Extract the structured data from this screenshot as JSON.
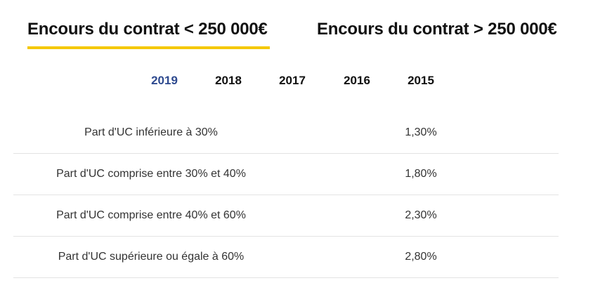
{
  "contract_tabs": [
    {
      "label": "Encours du contrat < 250 000€",
      "active": true
    },
    {
      "label": "Encours du contrat > 250 000€",
      "active": false
    }
  ],
  "year_tabs": [
    {
      "label": "2019",
      "active": true
    },
    {
      "label": "2018",
      "active": false
    },
    {
      "label": "2017",
      "active": false
    },
    {
      "label": "2016",
      "active": false
    },
    {
      "label": "2015",
      "active": false
    }
  ],
  "rates": [
    {
      "label": "Part d'UC inférieure à 30%",
      "value": "1,30%"
    },
    {
      "label": "Part d'UC comprise entre 30% et 40%",
      "value": "1,80%"
    },
    {
      "label": "Part d'UC comprise entre 40% et 60%",
      "value": "2,30%"
    },
    {
      "label": "Part d'UC supérieure ou égale à 60%",
      "value": "2,80%"
    }
  ],
  "colors": {
    "accent_underline": "#f5c800",
    "active_year": "#2e4a8f",
    "divider": "#e3e3e3"
  }
}
